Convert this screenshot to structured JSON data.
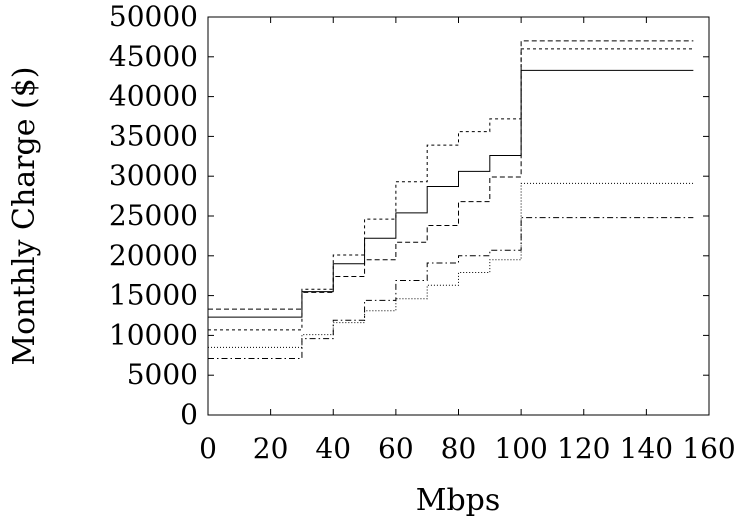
{
  "chart_data": {
    "type": "line",
    "step": true,
    "xlabel": "Mbps",
    "ylabel": "Monthly Charge ($)",
    "xlim": [
      0,
      160
    ],
    "ylim": [
      0,
      50000
    ],
    "xticks": [
      "0",
      "20",
      "40",
      "60",
      "80",
      "100",
      "120",
      "140",
      "160"
    ],
    "yticks": [
      "0",
      "5000",
      "10000",
      "15000",
      "20000",
      "25000",
      "30000",
      "35000",
      "40000",
      "45000",
      "50000"
    ],
    "grid": false,
    "legend": "none",
    "x": [
      0,
      30,
      40,
      50,
      60,
      70,
      80,
      90,
      100,
      155
    ],
    "series": [
      {
        "style": "solid",
        "values": [
          12300,
          15500,
          19000,
          22200,
          25400,
          28700,
          30600,
          32600,
          43300,
          43300
        ]
      },
      {
        "style": "dashed",
        "values": [
          13300,
          15400,
          17400,
          19500,
          21700,
          23800,
          26800,
          29900,
          47000,
          47000
        ]
      },
      {
        "style": "dotted",
        "values": [
          10700,
          15800,
          20100,
          24600,
          29300,
          33900,
          35600,
          37200,
          46000,
          46000
        ]
      },
      {
        "style": "dotdash",
        "values": [
          7100,
          9600,
          11900,
          14400,
          16900,
          19100,
          20000,
          20700,
          24800,
          24800
        ]
      },
      {
        "style": "finedot",
        "values": [
          8500,
          10100,
          11600,
          13100,
          14600,
          16300,
          17900,
          19500,
          29100,
          29100
        ]
      }
    ]
  }
}
